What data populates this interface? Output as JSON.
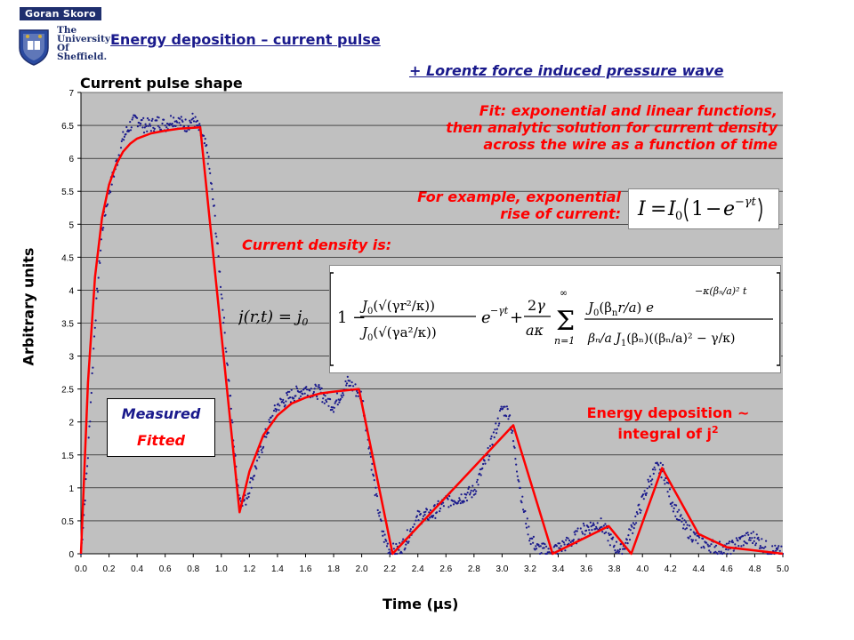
{
  "logo": {
    "name": "Goran Skoro",
    "lines": [
      "The",
      "University",
      "Of",
      "Sheffield."
    ]
  },
  "header": {
    "title": "Energy deposition – current pulse",
    "subtitle": "+ Lorentz force induced pressure wave"
  },
  "annotations": {
    "pulse_label": "Current pulse shape",
    "fit_lines": [
      "Fit: exponential and linear functions,",
      "then analytic solution for current density",
      "across the wire as a function of time"
    ],
    "example_lines": [
      "For example, exponential",
      "rise of current:"
    ],
    "density_label": "Current density is:",
    "energy_line1": "Energy deposition ~",
    "energy_line2": "integral of j",
    "energy_sup": "2"
  },
  "formulas": {
    "current": "I = I₀(1 − e^(−γt))",
    "density": "j(r,t) = j₀[1 − J₀(√(γr²/κ))/J₀(√(γa²/κ)) e^(−γt) + (2γ/(aκ)) Σ_{n=1}^{∞} J₀(βₙr/a) e^(−κ(βₙ/a)² t) / ((βₙ/a) J₁(βₙ)((βₙ/a)² − γ/κ))]"
  },
  "colors": {
    "measured": "#1a1a8c",
    "fitted": "#ff0000",
    "plot_bg": "#c0c0c0",
    "title": "#1a1a8c"
  },
  "chart_data": {
    "type": "line",
    "xlabel": "Time (μs)",
    "ylabel": "Arbitrary units",
    "xlim": [
      0.0,
      5.0
    ],
    "ylim": [
      0,
      7
    ],
    "x_ticks": [
      "0.0",
      "0.2",
      "0.4",
      "0.6",
      "0.8",
      "1.0",
      "1.2",
      "1.4",
      "1.6",
      "1.8",
      "2.0",
      "2.2",
      "2.4",
      "2.6",
      "2.8",
      "3.0",
      "3.2",
      "3.4",
      "3.6",
      "3.8",
      "4.0",
      "4.2",
      "4.4",
      "4.6",
      "4.8",
      "5.0"
    ],
    "y_ticks": [
      "0",
      "0.5",
      "1",
      "1.5",
      "2",
      "2.5",
      "3",
      "3.5",
      "4",
      "4.5",
      "5",
      "5.5",
      "6",
      "6.5",
      "7"
    ],
    "grid": "horizontal",
    "legend": "bottom-left",
    "series": [
      {
        "name": "Measured",
        "style": "dots",
        "x": [
          0.0,
          0.05,
          0.1,
          0.15,
          0.2,
          0.25,
          0.3,
          0.35,
          0.4,
          0.45,
          0.5,
          0.55,
          0.6,
          0.65,
          0.7,
          0.75,
          0.8,
          0.85,
          0.9,
          0.95,
          1.0,
          1.05,
          1.1,
          1.13,
          1.17,
          1.2,
          1.25,
          1.3,
          1.35,
          1.4,
          1.5,
          1.6,
          1.7,
          1.8,
          1.9,
          2.0,
          2.05,
          2.1,
          2.15,
          2.2,
          2.25,
          2.3,
          2.35,
          2.4,
          2.5,
          2.6,
          2.7,
          2.8,
          2.9,
          3.0,
          3.05,
          3.1,
          3.15,
          3.2,
          3.25,
          3.3,
          3.4,
          3.5,
          3.6,
          3.7,
          3.75,
          3.8,
          3.85,
          3.9,
          4.0,
          4.05,
          4.1,
          4.15,
          4.2,
          4.25,
          4.3,
          4.4,
          4.5,
          4.6,
          4.7,
          4.8,
          4.9,
          5.0
        ],
        "y": [
          0.0,
          1.5,
          3.5,
          4.9,
          5.5,
          5.9,
          6.3,
          6.5,
          6.6,
          6.5,
          6.5,
          6.55,
          6.5,
          6.6,
          6.55,
          6.5,
          6.6,
          6.4,
          6.1,
          5.2,
          4.0,
          2.7,
          1.4,
          0.85,
          0.8,
          1.0,
          1.35,
          1.7,
          2.0,
          2.25,
          2.4,
          2.5,
          2.45,
          2.25,
          2.6,
          2.4,
          1.7,
          0.9,
          0.3,
          0.05,
          0.05,
          0.15,
          0.35,
          0.55,
          0.6,
          0.8,
          0.85,
          0.95,
          1.5,
          2.2,
          2.15,
          1.4,
          0.7,
          0.25,
          0.08,
          0.05,
          0.08,
          0.2,
          0.4,
          0.45,
          0.3,
          0.12,
          0.05,
          0.25,
          0.8,
          1.1,
          1.3,
          1.25,
          0.85,
          0.6,
          0.4,
          0.2,
          0.12,
          0.05,
          0.2,
          0.25,
          0.05,
          0.0
        ]
      },
      {
        "name": "Fitted",
        "style": "line",
        "x": [
          0.0,
          0.05,
          0.1,
          0.15,
          0.2,
          0.25,
          0.3,
          0.35,
          0.4,
          0.5,
          0.6,
          0.7,
          0.85,
          1.13,
          1.2,
          1.3,
          1.4,
          1.5,
          1.6,
          1.7,
          1.8,
          1.98,
          2.22,
          3.08,
          3.36,
          3.76,
          3.92,
          4.14,
          4.4,
          4.6,
          4.8,
          5.0
        ],
        "y": [
          0.0,
          2.6,
          4.2,
          5.1,
          5.6,
          5.9,
          6.1,
          6.22,
          6.3,
          6.38,
          6.42,
          6.45,
          6.47,
          0.63,
          1.25,
          1.8,
          2.1,
          2.28,
          2.37,
          2.43,
          2.46,
          2.5,
          0.0,
          1.95,
          0.0,
          0.42,
          0.0,
          1.3,
          0.3,
          0.1,
          0.05,
          0.0
        ]
      }
    ]
  }
}
